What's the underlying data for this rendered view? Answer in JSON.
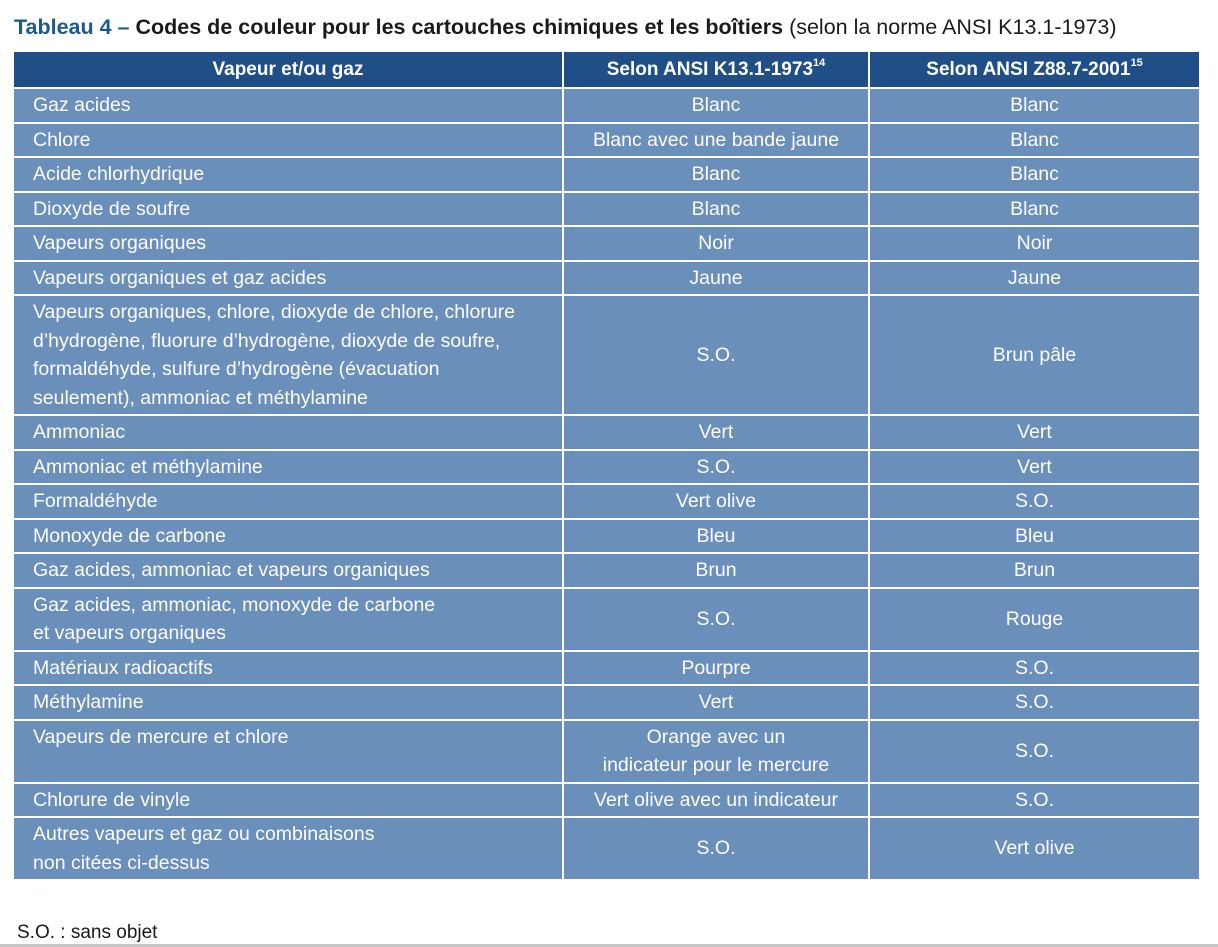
{
  "title": {
    "label": "Tableau 4 –",
    "main": "Codes de couleur pour les cartouches chimiques et les boîtiers",
    "note": "(selon la norme ANSI K13.1-1973)"
  },
  "table": {
    "headers": [
      {
        "label": "Vapeur et/ou gaz",
        "sup": ""
      },
      {
        "label": "Selon ANSI K13.1-1973",
        "sup": "14"
      },
      {
        "label": "Selon ANSI Z88.7-2001",
        "sup": "15"
      }
    ],
    "rows": [
      {
        "name": [
          "Gaz acides"
        ],
        "k13": [
          "Blanc"
        ],
        "z88": "Blanc"
      },
      {
        "name": [
          "Chlore"
        ],
        "k13": [
          "Blanc avec une bande jaune"
        ],
        "z88": "Blanc"
      },
      {
        "name": [
          "Acide chlorhydrique"
        ],
        "k13": [
          "Blanc"
        ],
        "z88": "Blanc"
      },
      {
        "name": [
          "Dioxyde de soufre"
        ],
        "k13": [
          "Blanc"
        ],
        "z88": "Blanc"
      },
      {
        "name": [
          "Vapeurs organiques"
        ],
        "k13": [
          "Noir"
        ],
        "z88": "Noir"
      },
      {
        "name": [
          "Vapeurs organiques et gaz acides"
        ],
        "k13": [
          "Jaune"
        ],
        "z88": "Jaune"
      },
      {
        "name": [
          "Vapeurs organiques, chlore, dioxyde de chlore, chlorure",
          "d’hydrogène, fluorure d’hydrogène, dioxyde de soufre,",
          "formaldéhyde, sulfure d’hydrogène (évacuation",
          "seulement), ammoniac et méthylamine"
        ],
        "k13": [
          "S.O."
        ],
        "z88": "Brun pâle"
      },
      {
        "name": [
          "Ammoniac"
        ],
        "k13": [
          "Vert"
        ],
        "z88": "Vert"
      },
      {
        "name": [
          "Ammoniac et méthylamine"
        ],
        "k13": [
          "S.O."
        ],
        "z88": "Vert"
      },
      {
        "name": [
          "Formaldéhyde"
        ],
        "k13": [
          "Vert olive"
        ],
        "z88": "S.O."
      },
      {
        "name": [
          "Monoxyde de carbone"
        ],
        "k13": [
          "Bleu"
        ],
        "z88": "Bleu"
      },
      {
        "name": [
          "Gaz acides, ammoniac et vapeurs organiques"
        ],
        "k13": [
          "Brun"
        ],
        "z88": "Brun"
      },
      {
        "name": [
          "Gaz acides, ammoniac, monoxyde de carbone",
          "et vapeurs organiques"
        ],
        "k13": [
          "S.O."
        ],
        "z88": "Rouge"
      },
      {
        "name": [
          "Matériaux radioactifs"
        ],
        "k13": [
          "Pourpre"
        ],
        "z88": "S.O."
      },
      {
        "name": [
          "Méthylamine"
        ],
        "k13": [
          "Vert"
        ],
        "z88": "S.O."
      },
      {
        "name": [
          "Vapeurs de mercure et chlore"
        ],
        "k13": [
          "Orange avec un",
          "indicateur pour le mercure"
        ],
        "z88": "S.O."
      },
      {
        "name": [
          "Chlorure de vinyle"
        ],
        "k13": [
          "Vert olive avec un indicateur"
        ],
        "z88": "S.O."
      },
      {
        "name": [
          "Autres vapeurs et gaz ou combinaisons",
          "non citées ci-dessus"
        ],
        "k13": [
          "S.O."
        ],
        "z88": "Vert olive"
      }
    ]
  },
  "footnote": "S.O. : sans objet",
  "colors": {
    "header_bg": "#1f4f86",
    "cell_bg": "#6a8fbb",
    "title_accent": "#1c5a8e"
  }
}
